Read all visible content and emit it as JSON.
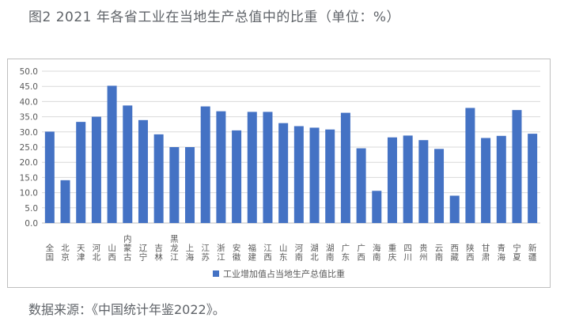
{
  "title": "图2 2021 年各省工业在当地生产总值中的比重（单位：%）",
  "source": "数据来源：《中国统计年鉴2022》。",
  "chart_data": {
    "type": "bar",
    "categories": [
      "全国",
      "北京",
      "天津",
      "河北",
      "山西",
      "内蒙古",
      "辽宁",
      "吉林",
      "黑龙江",
      "上海",
      "江苏",
      "浙江",
      "安徽",
      "福建",
      "江西",
      "山东",
      "河南",
      "湖北",
      "湖南",
      "广东",
      "广西",
      "海南",
      "重庆",
      "四川",
      "贵州",
      "云南",
      "西藏",
      "陕西",
      "甘肃",
      "青海",
      "宁夏",
      "新疆"
    ],
    "series": [
      {
        "name": "工业增加值占当地生产总值比重",
        "color": "#4472c4",
        "values": [
          30.1,
          14.1,
          33.3,
          35.0,
          45.2,
          38.7,
          33.9,
          29.2,
          25.0,
          25.0,
          38.4,
          36.8,
          30.5,
          36.6,
          36.6,
          32.9,
          31.9,
          31.4,
          30.8,
          36.3,
          24.6,
          10.6,
          28.2,
          28.8,
          27.3,
          24.4,
          9.0,
          37.9,
          28.0,
          28.7,
          37.2,
          29.4
        ]
      }
    ],
    "ylim": [
      0,
      50
    ],
    "yticks": [
      "0.0",
      "5.0",
      "10.0",
      "15.0",
      "20.0",
      "25.0",
      "30.0",
      "35.0",
      "40.0",
      "45.0",
      "50.0"
    ],
    "grid": true,
    "legend": "bottom"
  }
}
